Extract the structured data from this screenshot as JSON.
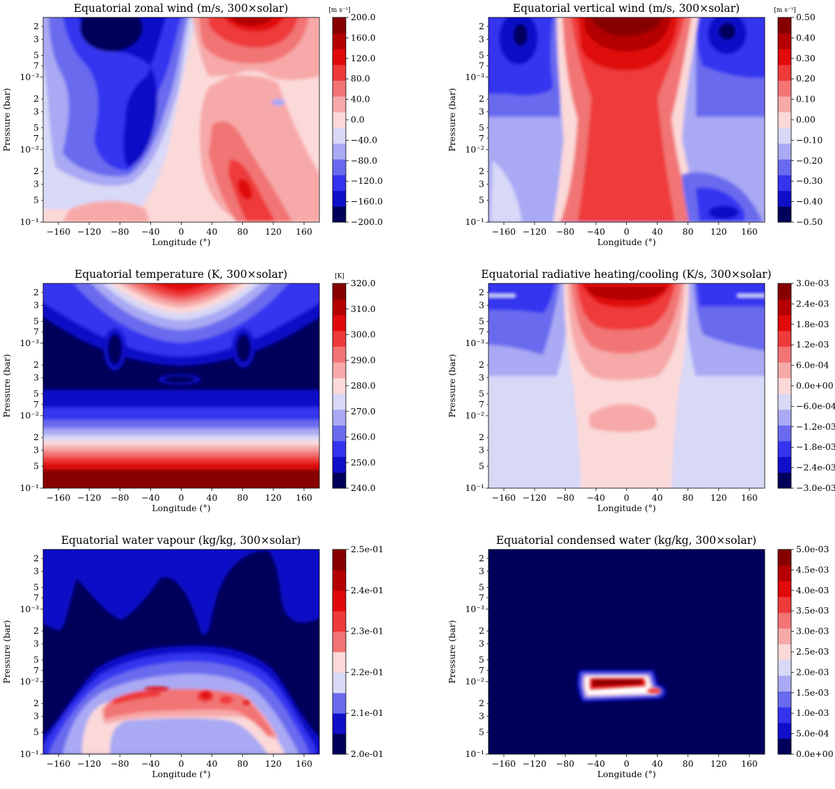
{
  "figure": {
    "x_ticks": [
      "-160",
      "-120",
      "-80",
      "-40",
      "0",
      "40",
      "80",
      "120",
      "160"
    ],
    "x_label": "Longitude (°)",
    "y_label": "Pressure (bar)",
    "y_ticks": [
      "2",
      "3",
      "5",
      "7",
      "10⁻³",
      "2",
      "3",
      "5",
      "7",
      "10⁻²",
      "2",
      "3",
      "5",
      "10⁻¹"
    ],
    "y_tick_values": [
      0.0002,
      0.0003,
      0.0005,
      0.0007,
      0.001,
      0.002,
      0.003,
      0.005,
      0.007,
      0.01,
      0.02,
      0.03,
      0.05,
      0.1
    ],
    "palette": [
      "#00005a",
      "#0f0fc8",
      "#3434f0",
      "#6a6aef",
      "#a9a9f4",
      "#d8d8f7",
      "#fbd9d9",
      "#f7a9a9",
      "#f27474",
      "#ef3a3a",
      "#e00a0a",
      "#b40000",
      "#870000"
    ]
  },
  "chart_data": [
    {
      "type": "heatmap",
      "title": "Equatorial zonal wind (m/s, 300×solar)",
      "xlabel": "Longitude (°)",
      "ylabel": "Pressure (bar)",
      "xlim": [
        -180,
        180
      ],
      "ylim": [
        0.1,
        0.00015
      ],
      "colorbar_unit": "[m s⁻¹]",
      "colorbar_ticks": [
        "200.0",
        "160.0",
        "120.0",
        "80.0",
        "40.0",
        "0.0",
        "-40.0",
        "-80.0",
        "-120.0",
        "-160.0",
        "-200.0"
      ],
      "colorbar_range": [
        -200,
        200
      ],
      "features": [
        {
          "lon": -80,
          "p": 0.0002,
          "value": -200
        },
        {
          "lon": -45,
          "p": 0.008,
          "value": -110
        },
        {
          "lon": 80,
          "p": 0.0002,
          "value": 200
        },
        {
          "lon": 80,
          "p": 0.035,
          "value": 120
        },
        {
          "lon": 110,
          "p": 0.002,
          "value": -20
        }
      ]
    },
    {
      "type": "heatmap",
      "title": "Equatorial vertical wind  (m/s, 300×solar)",
      "xlabel": "Longitude (°)",
      "ylabel": "Pressure (bar)",
      "xlim": [
        -180,
        180
      ],
      "ylim": [
        0.1,
        0.00015
      ],
      "colorbar_unit": "[m s⁻¹]",
      "colorbar_ticks": [
        "0.50",
        "0.40",
        "0.30",
        "0.20",
        "0.10",
        "0.00",
        "-0.10",
        "-0.20",
        "-0.30",
        "-0.40",
        "-0.50"
      ],
      "colorbar_range": [
        -0.5,
        0.5
      ],
      "features": [
        {
          "lon": 0,
          "p": 0.0003,
          "value": 0.5
        },
        {
          "lon": 0,
          "p": 0.01,
          "value": 0.3
        },
        {
          "lon": -140,
          "p": 0.0003,
          "value": -0.45
        },
        {
          "lon": 140,
          "p": 0.0003,
          "value": -0.45
        },
        {
          "lon": 130,
          "p": 0.04,
          "value": -0.35
        }
      ]
    },
    {
      "type": "heatmap",
      "title": "Equatorial temperature (K, 300×solar)",
      "xlabel": "Longitude (°)",
      "ylabel": "Pressure (bar)",
      "xlim": [
        -180,
        180
      ],
      "ylim": [
        0.1,
        0.00015
      ],
      "colorbar_unit": "[K]",
      "colorbar_ticks": [
        "320.0",
        "310.0",
        "300.0",
        "290.0",
        "280.0",
        "270.0",
        "260.0",
        "250.0",
        "240.0"
      ],
      "colorbar_range": [
        240,
        320
      ],
      "features": [
        {
          "lon": 0,
          "p": 0.0002,
          "value": 320
        },
        {
          "lon": -90,
          "p": 0.002,
          "value": 240
        },
        {
          "lon": 0,
          "p": 0.003,
          "value": 242
        },
        {
          "lon": 0,
          "p": 0.07,
          "value": 320
        }
      ]
    },
    {
      "type": "heatmap",
      "title": "Equatorial radiative heating/cooling (K/s, 300×solar)",
      "xlabel": "Longitude (°)",
      "ylabel": "Pressure (bar)",
      "xlim": [
        -180,
        180
      ],
      "ylim": [
        0.1,
        0.00015
      ],
      "colorbar_unit": "",
      "colorbar_ticks": [
        "3.0e-03",
        "2.4e-03",
        "1.8e-03",
        "1.2e-03",
        "6.0e-04",
        "0.0e+00",
        "-6.0e-04",
        "-1.2e-03",
        "-1.8e-03",
        "-2.4e-03",
        "-3.0e-03"
      ],
      "colorbar_range": [
        -0.003,
        0.003
      ],
      "features": [
        {
          "lon": 0,
          "p": 0.0002,
          "value": 0.003
        },
        {
          "lon": 0,
          "p": 0.001,
          "value": 0.0015
        },
        {
          "lon": 0,
          "p": 0.011,
          "value": 0.0005
        },
        {
          "lon": -140,
          "p": 0.0002,
          "value": -0.002
        },
        {
          "lon": 140,
          "p": 0.0002,
          "value": -0.002
        }
      ]
    },
    {
      "type": "heatmap",
      "title": "Equatorial water vapour (kg/kg, 300×solar)",
      "xlabel": "Longitude (°)",
      "ylabel": "Pressure (bar)",
      "xlim": [
        -180,
        180
      ],
      "ylim": [
        0.1,
        0.00015
      ],
      "colorbar_unit": "",
      "colorbar_ticks": [
        "2.5e-01",
        "2.4e-01",
        "2.3e-01",
        "2.2e-01",
        "2.1e-01",
        "2.0e-01"
      ],
      "colorbar_range": [
        0.2,
        0.25
      ],
      "features": [
        {
          "lon": -30,
          "p": 0.015,
          "value": 0.235
        },
        {
          "lon": 40,
          "p": 0.015,
          "value": 0.238
        },
        {
          "lon": 0,
          "p": 0.07,
          "value": 0.22
        },
        {
          "lon": -80,
          "p": 0.0005,
          "value": 0.2
        }
      ]
    },
    {
      "type": "heatmap",
      "title": "Equatorial condensed water (kg/kg, 300×solar)",
      "xlabel": "Longitude (°)",
      "ylabel": "Pressure (bar)",
      "xlim": [
        -180,
        180
      ],
      "ylim": [
        0.1,
        0.00015
      ],
      "colorbar_unit": "",
      "colorbar_ticks": [
        "5.0e-03",
        "4.5e-03",
        "4.0e-03",
        "3.5e-03",
        "3.0e-03",
        "2.5e-03",
        "2.0e-03",
        "1.5e-03",
        "1.0e-03",
        "5.0e-04",
        "0.0e+00"
      ],
      "colorbar_range": [
        0,
        0.005
      ],
      "features": [
        {
          "lon": -10,
          "p": 0.01,
          "value": 0.005
        },
        {
          "lon": 40,
          "p": 0.014,
          "value": 0.003
        }
      ]
    }
  ]
}
